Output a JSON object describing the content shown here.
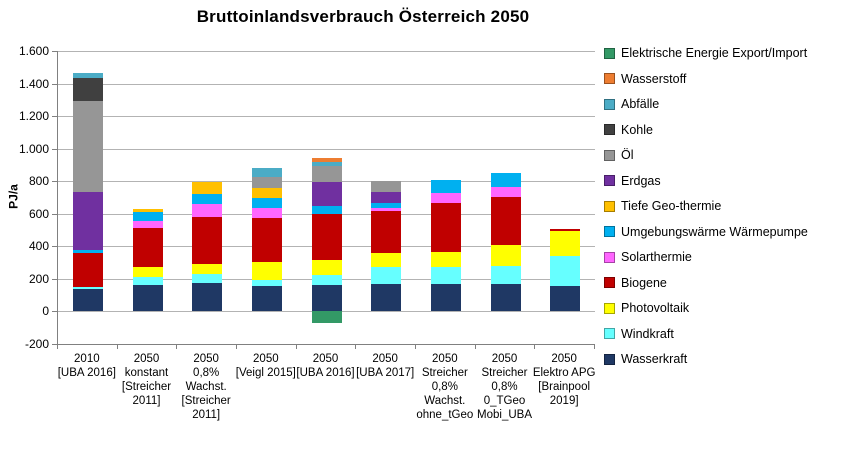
{
  "title": "Bruttoinlandsverbrauch Österreich 2050",
  "y_axis": {
    "label": "PJ/a",
    "max": 1600,
    "min": -200,
    "step": 200,
    "ticks": [
      "1.600",
      "1.400",
      "1.200",
      "1.000",
      "800",
      "600",
      "400",
      "200",
      "0",
      "-200"
    ]
  },
  "legend": {
    "position": "right",
    "items": [
      {
        "label": "Elektrische Energie Export/Import",
        "color": "#339966"
      },
      {
        "label": "Wasserstoff",
        "color": "#ED7D31"
      },
      {
        "label": "Abfälle",
        "color": "#4BACC6"
      },
      {
        "label": "Kohle",
        "color": "#404040"
      },
      {
        "label": "Öl",
        "color": "#969696"
      },
      {
        "label": "Erdgas",
        "color": "#7030A0"
      },
      {
        "label": "Tiefe Geo-thermie",
        "color": "#FFC000"
      },
      {
        "label": "Umgebungswärme Wärmepumpe",
        "color": "#00B0F0"
      },
      {
        "label": "Solarthermie",
        "color": "#FF66FF"
      },
      {
        "label": "Biogene",
        "color": "#C00000"
      },
      {
        "label": "Photovoltaik",
        "color": "#FFFF00"
      },
      {
        "label": "Windkraft",
        "color": "#66FFFF"
      },
      {
        "label": "Wasserkraft",
        "color": "#1F3864"
      }
    ]
  },
  "chart_data": {
    "type": "bar",
    "stacked": true,
    "title": "Bruttoinlandsverbrauch Österreich 2050",
    "xlabel": "",
    "ylabel": "PJ/a",
    "ylim": [
      -200,
      1600
    ],
    "grid": true,
    "legend_position": "right",
    "unit": "PJ/a",
    "categories": [
      [
        "2010",
        "[UBA 2016]"
      ],
      [
        "2050",
        "konstant",
        "[Streicher",
        "2011]"
      ],
      [
        "2050",
        "0,8%",
        "Wachst.",
        "[Streicher",
        "2011]"
      ],
      [
        "2050",
        "[Veigl 2015]"
      ],
      [
        "2050",
        "[UBA 2016]"
      ],
      [
        "2050",
        "[UBA 2017]"
      ],
      [
        "2050",
        "Streicher",
        "0,8%",
        "Wachst.",
        "ohne_tGeo"
      ],
      [
        "2050",
        "Streicher",
        "0,8%",
        "0_TGeo",
        "Mobi_UBA"
      ],
      [
        "2050",
        "Elektro APG",
        "[Brainpool",
        "2019]"
      ]
    ],
    "series": [
      {
        "name": "Wasserkraft",
        "color": "#1F3864",
        "values": [
          140,
          165,
          177,
          159,
          165,
          167,
          171,
          171,
          157
        ]
      },
      {
        "name": "Windkraft",
        "color": "#66FFFF",
        "values": [
          9,
          49,
          53,
          33,
          61,
          104,
          104,
          109,
          182
        ]
      },
      {
        "name": "Photovoltaik",
        "color": "#FFFF00",
        "values": [
          0,
          61,
          63,
          113,
          88,
          86,
          88,
          127,
          156
        ]
      },
      {
        "name": "Biogene",
        "color": "#C00000",
        "values": [
          210,
          235,
          289,
          272,
          285,
          262,
          301,
          299,
          12
        ]
      },
      {
        "name": "Solarthermie",
        "color": "#FF66FF",
        "values": [
          0,
          43,
          76,
          58,
          0,
          18,
          61,
          61,
          0
        ]
      },
      {
        "name": "Umgebungswärme Wärmepumpe",
        "color": "#00B0F0",
        "values": [
          18,
          58,
          61,
          61,
          49,
          31,
          82,
          82,
          0
        ]
      },
      {
        "name": "Tiefe Geo-thermie",
        "color": "#FFC000",
        "values": [
          0,
          16,
          78,
          65,
          0,
          0,
          0,
          0,
          0
        ]
      },
      {
        "name": "Erdgas",
        "color": "#7030A0",
        "values": [
          358,
          0,
          0,
          0,
          150,
          67,
          0,
          0,
          0
        ]
      },
      {
        "name": "Öl",
        "color": "#969696",
        "values": [
          555,
          0,
          0,
          64,
          98,
          64,
          0,
          0,
          0
        ]
      },
      {
        "name": "Kohle",
        "color": "#404040",
        "values": [
          145,
          0,
          0,
          0,
          0,
          0,
          0,
          0,
          0
        ]
      },
      {
        "name": "Abfälle",
        "color": "#4BACC6",
        "values": [
          32,
          0,
          0,
          55,
          25,
          0,
          0,
          0,
          0
        ]
      },
      {
        "name": "Wasserstoff",
        "color": "#ED7D31",
        "values": [
          0,
          0,
          0,
          0,
          21,
          0,
          0,
          0,
          0
        ]
      },
      {
        "name": "Elektrische Energie Export/Import",
        "color": "#339966",
        "values": [
          0,
          0,
          0,
          0,
          -70,
          0,
          0,
          0,
          0
        ]
      }
    ]
  }
}
